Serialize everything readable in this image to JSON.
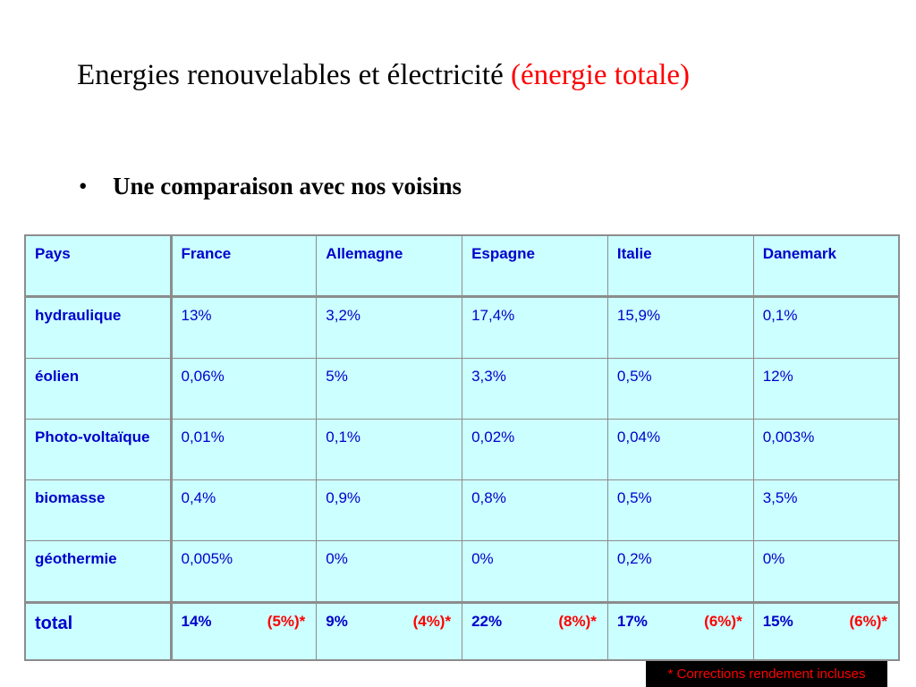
{
  "slide": {
    "title_main": "Energies renouvelables et électricité",
    "title_accent": "(énergie totale)",
    "bullet_symbol": "•",
    "bullet_text": "Une comparaison avec nos voisins",
    "footnote": "* Corrections rendement incluses"
  },
  "table": {
    "headers": [
      "Pays",
      "France",
      "Allemagne",
      "Espagne",
      "Italie",
      "Danemark"
    ],
    "rows": [
      {
        "label": "hydraulique",
        "values": [
          "13%",
          "3,2%",
          "17,4%",
          "15,9%",
          "0,1%"
        ]
      },
      {
        "label": "éolien",
        "values": [
          "0,06%",
          "5%",
          "3,3%",
          "0,5%",
          "12%"
        ]
      },
      {
        "label": "Photo-voltaïque",
        "values": [
          "0,01%",
          "0,1%",
          "0,02%",
          "0,04%",
          "0,003%"
        ]
      },
      {
        "label": "biomasse",
        "values": [
          "0,4%",
          "0,9%",
          "0,8%",
          "0,5%",
          "3,5%"
        ]
      },
      {
        "label": "géothermie",
        "values": [
          "0,005%",
          "0%",
          "0%",
          "0,2%",
          "0%"
        ]
      }
    ],
    "total": {
      "label": "total",
      "values": [
        {
          "value": "14%",
          "corrected": "(5%)*"
        },
        {
          "value": "9%",
          "corrected": "(4%)*"
        },
        {
          "value": "22%",
          "corrected": "(8%)*"
        },
        {
          "value": "17%",
          "corrected": "(6%)*"
        },
        {
          "value": "15%",
          "corrected": "(6%)*"
        }
      ]
    }
  },
  "colors": {
    "table_background": "#ccffff",
    "table_text": "#0000cc",
    "accent_red": "#ff0000",
    "footnote_background": "#000000"
  }
}
